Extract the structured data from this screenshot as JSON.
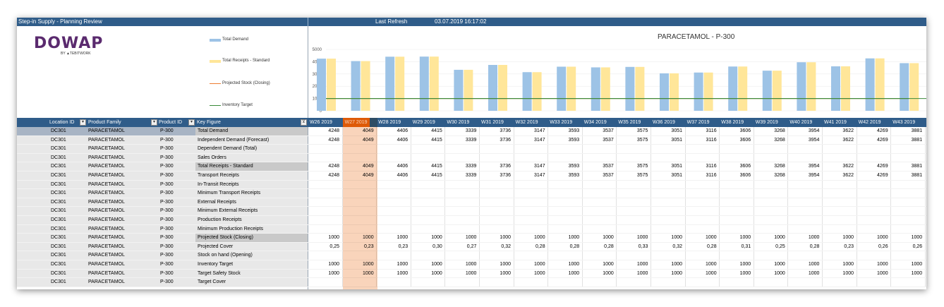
{
  "topbar": {
    "app_title": "Step-in Supply - Planning Review",
    "last_refresh_label": "Last Refresh",
    "last_refresh_value": "03.07.2019 16:17:02"
  },
  "logo": {
    "word": "DOWAP",
    "by": "BY ▲TEBITWORK"
  },
  "colors": {
    "bar_demand": "#9dc3e6",
    "bar_receipts": "#ffe699",
    "line_stock": "#ed7d31",
    "line_target": "#3a8a3a",
    "header_bg": "#2f5c89",
    "current_week": "#f4b183"
  },
  "chart_data": {
    "type": "bar",
    "title": "PARACETAMOL - P-300",
    "categories": [
      "W26 2019",
      "W27 2019",
      "W28 2019",
      "W29 2019",
      "W30 2019",
      "W31 2019",
      "W32 2019",
      "W33 2019",
      "W34 2019",
      "W35 2019",
      "W36 2019",
      "W37 2019",
      "W38 2019",
      "W39 2019",
      "W40 2019",
      "W41 2019",
      "W42 2019",
      "W43 2019"
    ],
    "series": [
      {
        "name": "Total Demand",
        "type": "bar",
        "values": [
          4248,
          4049,
          4406,
          4415,
          3339,
          3736,
          3147,
          3593,
          3537,
          3575,
          3051,
          3116,
          3606,
          3268,
          3954,
          3622,
          4269,
          3881
        ]
      },
      {
        "name": "Total Receipts - Standard",
        "type": "bar",
        "values": [
          4248,
          4049,
          4406,
          4415,
          3339,
          3736,
          3147,
          3593,
          3537,
          3575,
          3051,
          3116,
          3606,
          3268,
          3954,
          3622,
          4269,
          3881
        ]
      },
      {
        "name": "Projected Stock (Closing)",
        "type": "line",
        "values": [
          1000,
          1000,
          1000,
          1000,
          1000,
          1000,
          1000,
          1000,
          1000,
          1000,
          1000,
          1000,
          1000,
          1000,
          1000,
          1000,
          1000,
          1000
        ]
      },
      {
        "name": "Inventory Target",
        "type": "line",
        "values": [
          1000,
          1000,
          1000,
          1000,
          1000,
          1000,
          1000,
          1000,
          1000,
          1000,
          1000,
          1000,
          1000,
          1000,
          1000,
          1000,
          1000,
          1000
        ]
      }
    ],
    "yticks": [
      "5000",
      "4000",
      "3000",
      "2000",
      "1000",
      "0"
    ],
    "ylim": [
      0,
      5000
    ],
    "legend_position": "left"
  },
  "table": {
    "headers": {
      "location": "Location ID",
      "family": "Product Family",
      "product": "Product ID",
      "key_figure": "Key Figure"
    },
    "current_week_index": 1,
    "rows": [
      {
        "loc": "DC301",
        "fam": "PARACETAMOL",
        "prod": "P-300",
        "kf": "Total Demand",
        "style": "highlight",
        "vals": [
          "4248",
          "4049",
          "4406",
          "4415",
          "3339",
          "3736",
          "3147",
          "3593",
          "3537",
          "3575",
          "3051",
          "3116",
          "3606",
          "3268",
          "3954",
          "3622",
          "4269",
          "3881"
        ]
      },
      {
        "loc": "DC301",
        "fam": "PARACETAMOL",
        "prod": "P-300",
        "kf": "Independent Demand (Forecast)",
        "style": "",
        "vals": [
          "4248",
          "4049",
          "4406",
          "4415",
          "3339",
          "3736",
          "3147",
          "3593",
          "3537",
          "3575",
          "3051",
          "3116",
          "3606",
          "3268",
          "3954",
          "3622",
          "4269",
          "3881"
        ]
      },
      {
        "loc": "DC301",
        "fam": "PARACETAMOL",
        "prod": "P-300",
        "kf": "Dependent Demand (Total)",
        "style": "",
        "vals": []
      },
      {
        "loc": "DC301",
        "fam": "PARACETAMOL",
        "prod": "P-300",
        "kf": "Sales Orders",
        "style": "",
        "vals": []
      },
      {
        "loc": "DC301",
        "fam": "PARACETAMOL",
        "prod": "P-300",
        "kf": "Total Receipts - Standard",
        "style": "highlight2",
        "vals": [
          "4248",
          "4049",
          "4406",
          "4415",
          "3339",
          "3736",
          "3147",
          "3593",
          "3537",
          "3575",
          "3051",
          "3116",
          "3606",
          "3268",
          "3954",
          "3622",
          "4269",
          "3881"
        ]
      },
      {
        "loc": "DC301",
        "fam": "PARACETAMOL",
        "prod": "P-300",
        "kf": "Transport Receipts",
        "style": "",
        "vals": [
          "4248",
          "4049",
          "4406",
          "4415",
          "3339",
          "3736",
          "3147",
          "3593",
          "3537",
          "3575",
          "3051",
          "3116",
          "3606",
          "3268",
          "3954",
          "3622",
          "4269",
          "3881"
        ]
      },
      {
        "loc": "DC301",
        "fam": "PARACETAMOL",
        "prod": "P-300",
        "kf": "In-Transit Receipts",
        "style": "",
        "vals": []
      },
      {
        "loc": "DC301",
        "fam": "PARACETAMOL",
        "prod": "P-300",
        "kf": "Minimum Transport Receipts",
        "style": "",
        "vals": []
      },
      {
        "loc": "DC301",
        "fam": "PARACETAMOL",
        "prod": "P-300",
        "kf": "External Receipts",
        "style": "",
        "vals": []
      },
      {
        "loc": "DC301",
        "fam": "PARACETAMOL",
        "prod": "P-300",
        "kf": "Minimum External Receipts",
        "style": "",
        "vals": []
      },
      {
        "loc": "DC301",
        "fam": "PARACETAMOL",
        "prod": "P-300",
        "kf": "Production Receipts",
        "style": "",
        "vals": []
      },
      {
        "loc": "DC301",
        "fam": "PARACETAMOL",
        "prod": "P-300",
        "kf": "Minimum Production Receipts",
        "style": "",
        "vals": []
      },
      {
        "loc": "DC301",
        "fam": "PARACETAMOL",
        "prod": "P-300",
        "kf": "Projected Stock (Closing)",
        "style": "highlight2",
        "vals": [
          "1000",
          "1000",
          "1000",
          "1000",
          "1000",
          "1000",
          "1000",
          "1000",
          "1000",
          "1000",
          "1000",
          "1000",
          "1000",
          "1000",
          "1000",
          "1000",
          "1000",
          "1000"
        ]
      },
      {
        "loc": "DC301",
        "fam": "PARACETAMOL",
        "prod": "P-300",
        "kf": "Projected Cover",
        "style": "",
        "vals": [
          "0,25",
          "0,23",
          "0,23",
          "0,30",
          "0,27",
          "0,32",
          "0,28",
          "0,28",
          "0,28",
          "0,33",
          "0,32",
          "0,28",
          "0,31",
          "0,25",
          "0,28",
          "0,23",
          "0,26",
          "0,26"
        ]
      },
      {
        "loc": "DC301",
        "fam": "PARACETAMOL",
        "prod": "P-300",
        "kf": "Stock on hand (Opening)",
        "style": "",
        "vals": []
      },
      {
        "loc": "DC301",
        "fam": "PARACETAMOL",
        "prod": "P-300",
        "kf": "Inventory Target",
        "style": "",
        "vals": [
          "1000",
          "1000",
          "1000",
          "1000",
          "1000",
          "1000",
          "1000",
          "1000",
          "1000",
          "1000",
          "1000",
          "1000",
          "1000",
          "1000",
          "1000",
          "1000",
          "1000",
          "1000"
        ]
      },
      {
        "loc": "DC301",
        "fam": "PARACETAMOL",
        "prod": "P-300",
        "kf": "Target Safety Stock",
        "style": "",
        "vals": [
          "1000",
          "1000",
          "1000",
          "1000",
          "1000",
          "1000",
          "1000",
          "1000",
          "1000",
          "1000",
          "1000",
          "1000",
          "1000",
          "1000",
          "1000",
          "1000",
          "1000",
          "1000"
        ]
      },
      {
        "loc": "DC301",
        "fam": "PARACETAMOL",
        "prod": "P-300",
        "kf": "Target Cover",
        "style": "",
        "vals": []
      }
    ]
  }
}
